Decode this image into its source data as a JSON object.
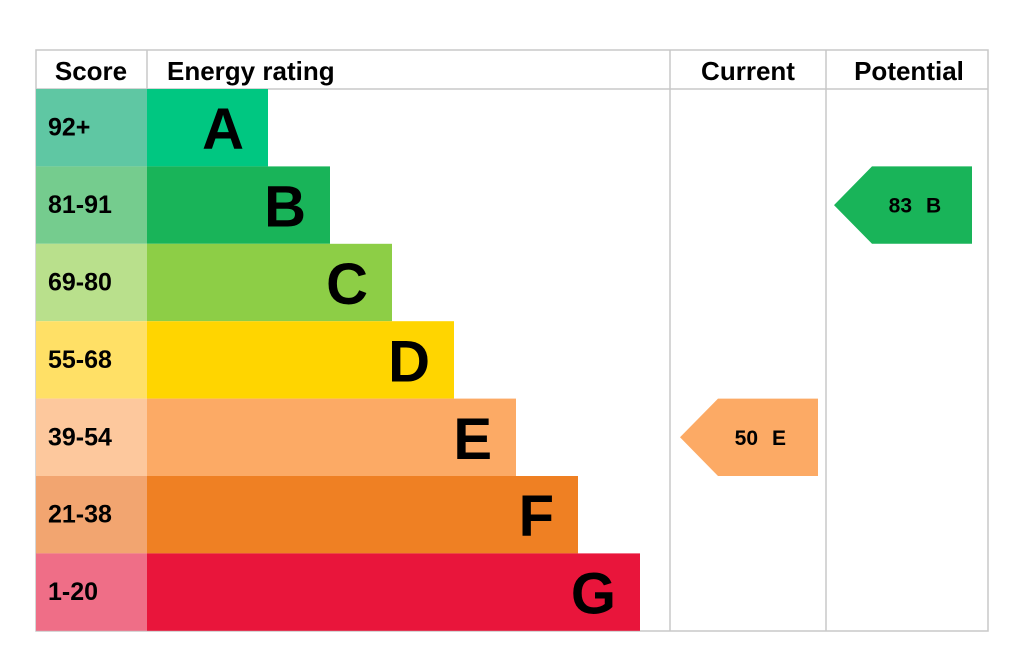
{
  "header": {
    "score": "Score",
    "rating": "Energy rating",
    "current": "Current",
    "potential": "Potential"
  },
  "bands": [
    {
      "score": "92+",
      "letter": "A",
      "color": "#00c781",
      "score_color": "#5fc7a3"
    },
    {
      "score": "81-91",
      "letter": "B",
      "color": "#19b459",
      "score_color": "#75cc8e"
    },
    {
      "score": "69-80",
      "letter": "C",
      "color": "#8dce46",
      "score_color": "#b9e08c"
    },
    {
      "score": "55-68",
      "letter": "D",
      "color": "#ffd500",
      "score_color": "#ffe066"
    },
    {
      "score": "39-54",
      "letter": "E",
      "color": "#fcaa65",
      "score_color": "#fdc89d"
    },
    {
      "score": "21-38",
      "letter": "F",
      "color": "#ef8023",
      "score_color": "#f2a570"
    },
    {
      "score": "1-20",
      "letter": "G",
      "color": "#e9153b",
      "score_color": "#ef6e87"
    }
  ],
  "current": {
    "value": 50,
    "letter": "E"
  },
  "potential": {
    "value": 83,
    "letter": "B"
  }
}
